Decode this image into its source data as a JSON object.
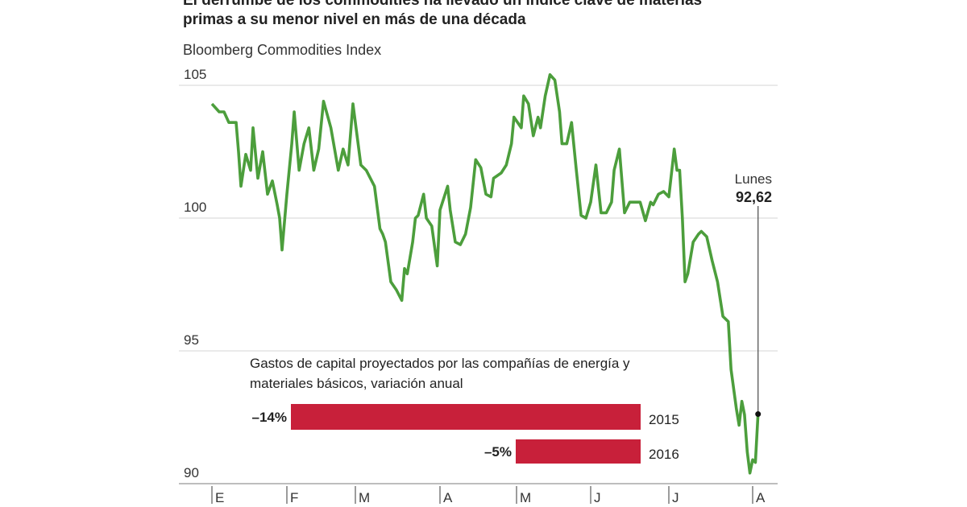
{
  "chart_data": [
    {
      "type": "line",
      "title": "El derrumbe de los commodities ha llevado un índice clave de materias primas a su menor nivel en más de una década",
      "title_lines": [
        "El derrumbe de los commodities ha llevado un índice clave de materias",
        "primas a su menor nivel en más de una década"
      ],
      "subtitle": "Bloomberg Commodities Index",
      "xlabel": "",
      "ylabel": "",
      "ylim": [
        90,
        105
      ],
      "yticks": [
        105,
        100,
        95,
        90
      ],
      "ytick_labels": [
        "105",
        "100",
        "95",
        "90"
      ],
      "xticks": [
        "E",
        "F",
        "M",
        "A",
        "M",
        "J",
        "J",
        "A"
      ],
      "grid": true,
      "line_color": "#4c9e3c",
      "annotation": {
        "label": "Lunes",
        "value_label": "92,62",
        "value": 92.62,
        "date": "08-03"
      },
      "series": [
        {
          "x": [
            "01-01",
            "01-04",
            "01-06",
            "01-08",
            "01-11",
            "01-12",
            "01-13",
            "01-15",
            "01-17",
            "01-18",
            "01-20",
            "01-22",
            "01-24",
            "01-26",
            "01-28",
            "01-29",
            "01-30",
            "02-01",
            "02-03",
            "02-04",
            "02-06",
            "02-08",
            "02-10",
            "02-12",
            "02-14",
            "02-16",
            "02-19",
            "02-22",
            "02-24",
            "02-26",
            "02-28",
            "03-03",
            "03-05",
            "03-08",
            "03-10",
            "03-11",
            "03-12",
            "03-14",
            "03-16",
            "03-18",
            "03-19",
            "03-20",
            "03-22",
            "03-23",
            "03-24",
            "03-26",
            "03-27",
            "03-29",
            "03-31",
            "04-01",
            "04-04",
            "04-05",
            "04-07",
            "04-09",
            "04-11",
            "04-13",
            "04-15",
            "04-17",
            "04-19",
            "04-21",
            "04-22",
            "04-25",
            "04-27",
            "04-29",
            "04-30",
            "05-03",
            "05-04",
            "05-06",
            "05-08",
            "05-10",
            "05-11",
            "05-13",
            "05-15",
            "05-17",
            "05-19",
            "05-20",
            "05-22",
            "05-24",
            "05-26",
            "05-28",
            "05-30",
            "06-01",
            "06-03",
            "06-05",
            "06-07",
            "06-09",
            "06-10",
            "06-12",
            "06-14",
            "06-16",
            "06-18",
            "06-20",
            "06-22",
            "06-24",
            "06-25",
            "06-27",
            "06-29",
            "07-01",
            "07-03",
            "07-04",
            "07-05",
            "07-06",
            "07-07",
            "07-08",
            "07-10",
            "07-12",
            "07-13",
            "07-15",
            "07-17",
            "07-19",
            "07-21",
            "07-23",
            "07-24",
            "07-26",
            "07-27",
            "07-28",
            "07-29",
            "07-30",
            "07-31",
            "08-01",
            "08-02",
            "08-03"
          ],
          "y": [
            104.3,
            104.0,
            104.0,
            103.6,
            103.6,
            102.5,
            101.2,
            102.4,
            101.8,
            103.4,
            101.5,
            102.5,
            100.9,
            101.4,
            100.5,
            100.0,
            98.8,
            100.9,
            102.8,
            104.0,
            101.8,
            102.8,
            103.4,
            101.8,
            102.6,
            104.4,
            103.4,
            101.8,
            102.6,
            102.0,
            104.3,
            102.0,
            101.8,
            101.2,
            99.6,
            99.4,
            99.1,
            97.6,
            97.3,
            96.9,
            98.1,
            97.9,
            99.1,
            100.0,
            100.1,
            100.9,
            100.0,
            99.7,
            98.2,
            100.3,
            101.2,
            100.3,
            99.1,
            99.0,
            99.4,
            100.4,
            102.2,
            101.9,
            100.9,
            100.8,
            101.5,
            101.7,
            102.0,
            102.8,
            103.8,
            103.4,
            104.6,
            104.3,
            103.1,
            103.8,
            103.4,
            104.6,
            105.4,
            105.2,
            104.0,
            102.8,
            102.8,
            103.6,
            101.8,
            100.1,
            100.0,
            100.6,
            102.0,
            100.2,
            100.2,
            100.6,
            101.8,
            102.6,
            100.2,
            100.6,
            100.6,
            100.6,
            99.9,
            100.6,
            100.5,
            100.9,
            101.0,
            100.8,
            102.6,
            101.8,
            101.8,
            100.0,
            97.6,
            97.9,
            99.1,
            99.4,
            99.5,
            99.3,
            98.4,
            97.6,
            96.3,
            96.1,
            94.3,
            92.8,
            92.2,
            93.1,
            92.6,
            91.2,
            90.4,
            90.9,
            90.8,
            92.62
          ]
        }
      ]
    },
    {
      "type": "bar",
      "orientation": "horizontal",
      "title": "Gastos de capital proyectados por las compañías de energía y materiales básicos, variación anual",
      "title_lines": [
        "Gastos de capital proyectados por las compañías de energía y",
        "materiales básicos, variación anual"
      ],
      "categories": [
        "2015",
        "2016"
      ],
      "values": [
        -14,
        -5
      ],
      "value_labels": [
        "–14%",
        "–5%"
      ],
      "bar_color": "#c8203a"
    }
  ]
}
